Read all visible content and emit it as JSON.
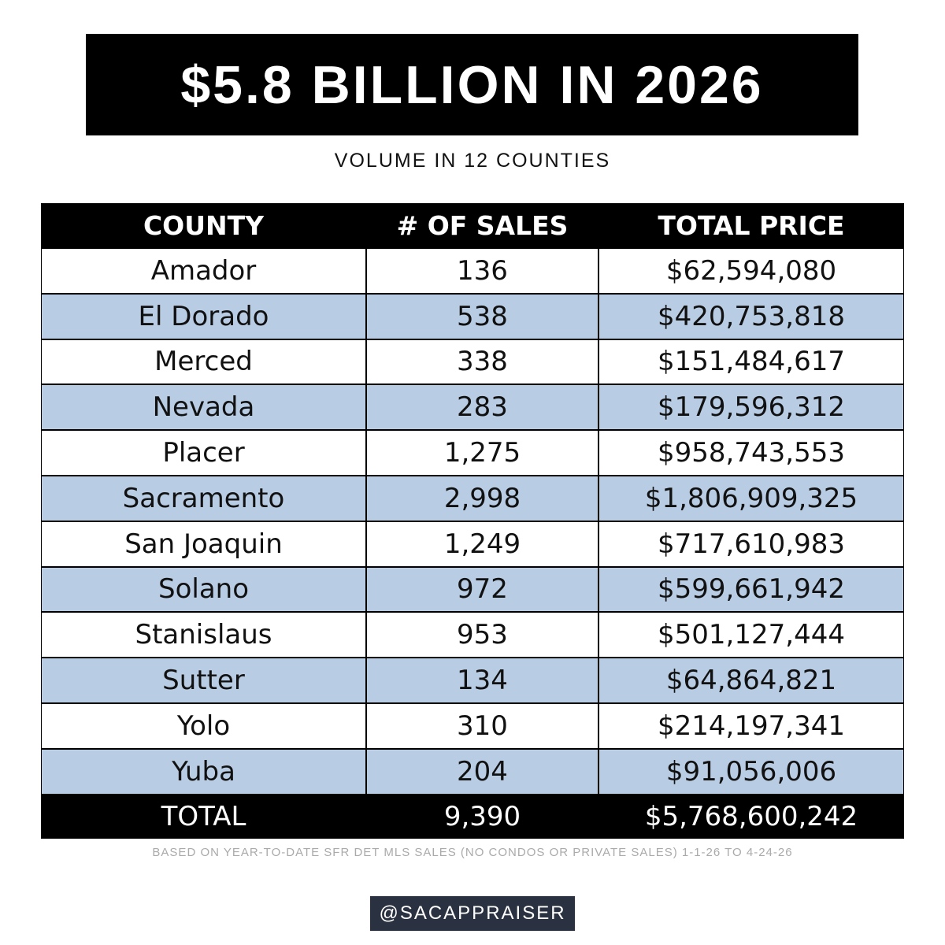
{
  "header": {
    "title": "$5.8 BILLION IN 2026",
    "subtitle": "VOLUME IN 12 COUNTIES"
  },
  "table": {
    "columns": [
      "COUNTY",
      "# OF SALES",
      "TOTAL PRICE"
    ],
    "rows": [
      [
        "Amador",
        "136",
        "$62,594,080"
      ],
      [
        "El Dorado",
        "538",
        "$420,753,818"
      ],
      [
        "Merced",
        "338",
        "$151,484,617"
      ],
      [
        "Nevada",
        "283",
        "$179,596,312"
      ],
      [
        "Placer",
        "1,275",
        "$958,743,553"
      ],
      [
        "Sacramento",
        "2,998",
        "$1,806,909,325"
      ],
      [
        "San Joaquin",
        "1,249",
        "$717,610,983"
      ],
      [
        "Solano",
        "972",
        "$599,661,942"
      ],
      [
        "Stanislaus",
        "953",
        "$501,127,444"
      ],
      [
        "Sutter",
        "134",
        "$64,864,821"
      ],
      [
        "Yolo",
        "310",
        "$214,197,341"
      ],
      [
        "Yuba",
        "204",
        "$91,056,006"
      ]
    ],
    "total": [
      "TOTAL",
      "9,390",
      "$5,768,600,242"
    ]
  },
  "footnote": "BASED ON YEAR-TO-DATE SFR DET MLS SALES (NO CONDOS OR PRIVATE SALES) 1-1-26 TO 4-24-26",
  "handle": "@SACAPPRAISER"
}
